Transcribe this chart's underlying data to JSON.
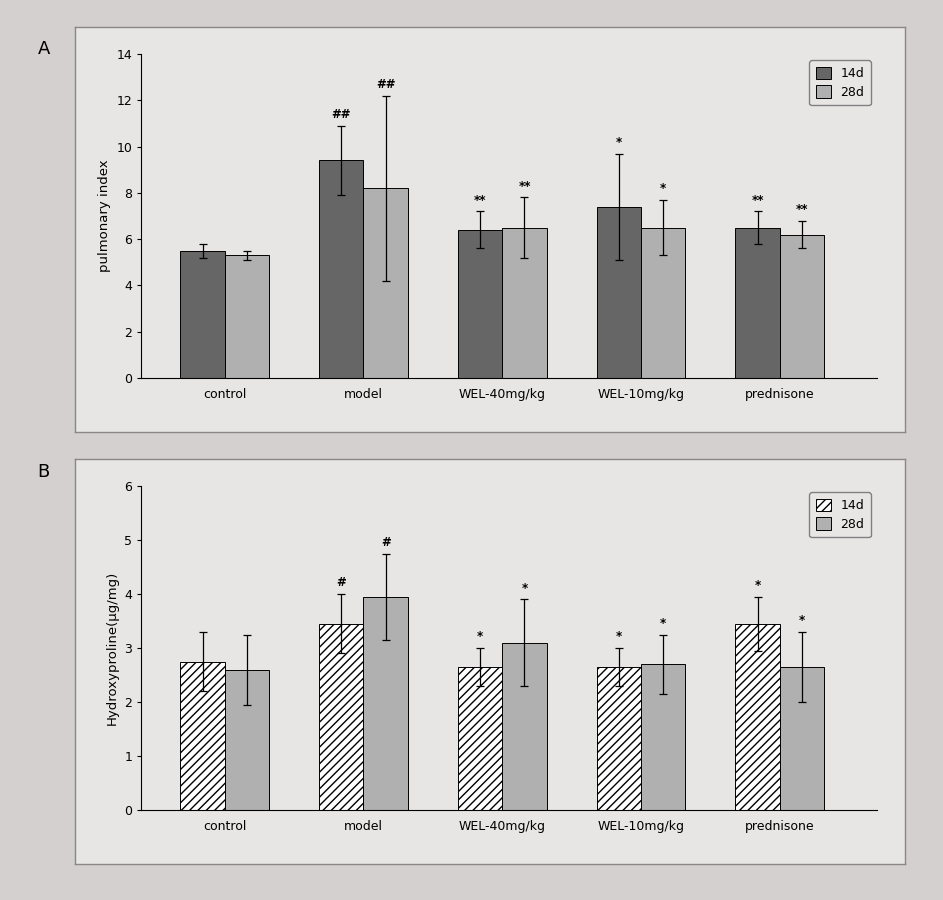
{
  "panel_A": {
    "categories": [
      "control",
      "model",
      "WEL-40mg/kg",
      "WEL-10mg/kg",
      "prednisone"
    ],
    "bar14d": [
      5.5,
      9.4,
      6.4,
      7.4,
      6.5
    ],
    "bar28d": [
      5.3,
      8.2,
      6.5,
      6.5,
      6.2
    ],
    "err14d": [
      0.3,
      1.5,
      0.8,
      2.3,
      0.7
    ],
    "err28d": [
      0.2,
      4.0,
      1.3,
      1.2,
      0.6
    ],
    "ylabel": "pulmonary index",
    "ylim": [
      0,
      14
    ],
    "yticks": [
      0,
      2,
      4,
      6,
      8,
      10,
      12,
      14
    ],
    "color14d": "#666666",
    "color28d": "#b0b0b0",
    "annotations14d": [
      "",
      "##",
      "**",
      "*",
      "**"
    ],
    "annotations28d": [
      "",
      "##",
      "**",
      "*",
      "**"
    ],
    "panel_label": "A"
  },
  "panel_B": {
    "categories": [
      "control",
      "model",
      "WEL-40mg/kg",
      "WEL-10mg/kg",
      "prednisone"
    ],
    "bar14d": [
      2.75,
      3.45,
      2.65,
      2.65,
      3.45
    ],
    "bar28d": [
      2.6,
      3.95,
      3.1,
      2.7,
      2.65
    ],
    "err14d": [
      0.55,
      0.55,
      0.35,
      0.35,
      0.5
    ],
    "err28d": [
      0.65,
      0.8,
      0.8,
      0.55,
      0.65
    ],
    "ylabel": "Hydroxyproline(μg/mg)",
    "ylim": [
      0,
      6
    ],
    "yticks": [
      0,
      1,
      2,
      3,
      4,
      5,
      6
    ],
    "color14d": "#666666",
    "color28d": "#b0b0b0",
    "annotations14d": [
      "",
      "#",
      "*",
      "*",
      "*"
    ],
    "annotations28d": [
      "",
      "#",
      "*",
      "*",
      "*"
    ],
    "panel_label": "B"
  },
  "plot_bg": "#e0dede",
  "figure_bg": "#d4d0d0",
  "panel_box_bg": "#e8e5e5",
  "bar_width": 0.32
}
